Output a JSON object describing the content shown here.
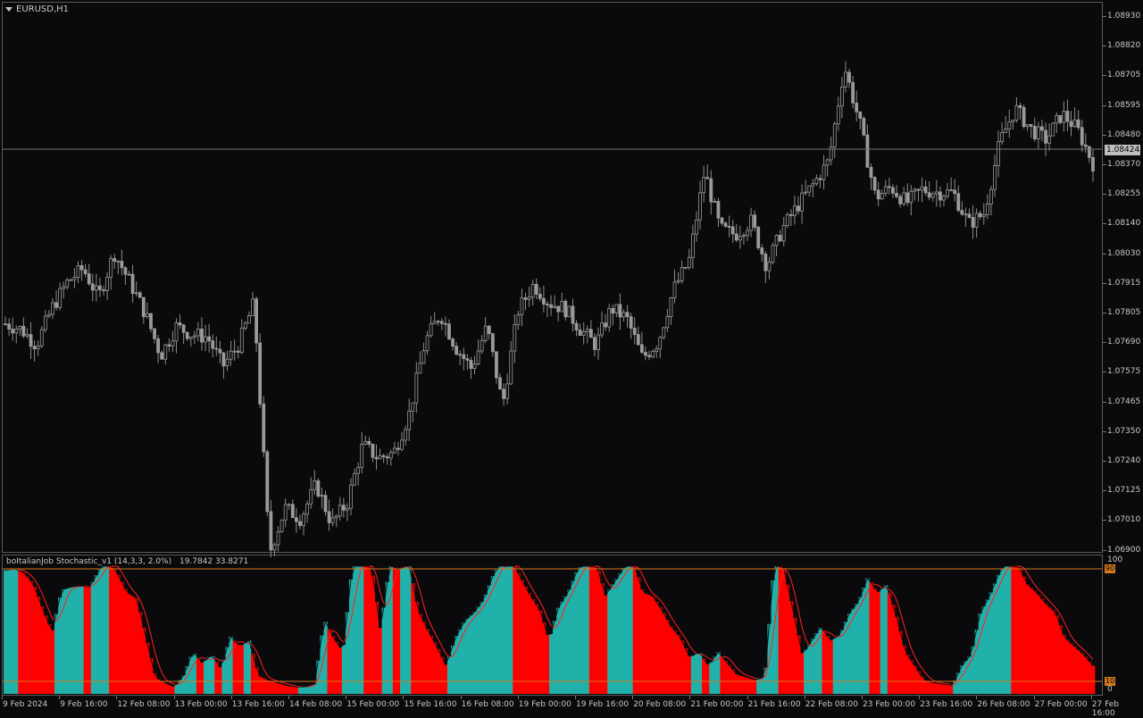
{
  "chart_window": {
    "symbol_label": "EURUSD,H1",
    "current_price": "1.08424",
    "colors": {
      "background": "#0a0a0d",
      "candle": "#9a9a9a",
      "price_line": "#7a7a7a"
    }
  },
  "indicator": {
    "label": "boItalianJob Stochastic_v1 (14,3,3, 2.0%)",
    "values": "19.7842 33.8271",
    "colors": {
      "up_fill": "#20b2aa",
      "down_fill": "#ff0000",
      "main_line": "#ff2020",
      "signal_line": "#000000",
      "level_line": "#d4781e"
    },
    "levels": {
      "top": "100",
      "high": "90",
      "low": "10",
      "bottom": "0"
    }
  },
  "price_axis": [
    "1.08930",
    "1.08820",
    "1.08705",
    "1.08595",
    "1.08480",
    "1.08370",
    "1.08255",
    "1.08140",
    "1.08030",
    "1.07915",
    "1.07805",
    "1.07690",
    "1.07575",
    "1.07465",
    "1.07350",
    "1.07240",
    "1.07125",
    "1.07010",
    "1.06900"
  ],
  "time_axis": [
    "9 Feb 2024",
    "9 Feb 16:00",
    "12 Feb 08:00",
    "13 Feb 00:00",
    "13 Feb 16:00",
    "14 Feb 08:00",
    "15 Feb 00:00",
    "15 Feb 16:00",
    "16 Feb 08:00",
    "19 Feb 00:00",
    "19 Feb 16:00",
    "20 Feb 08:00",
    "21 Feb 00:00",
    "21 Feb 16:00",
    "22 Feb 08:00",
    "23 Feb 00:00",
    "23 Feb 16:00",
    "26 Feb 08:00",
    "27 Feb 00:00",
    "27 Feb 16:00"
  ],
  "chart_data": [
    {
      "type": "candlestick",
      "title": "EURUSD,H1",
      "ylim": [
        1.069,
        1.0893
      ],
      "close_path": [
        1.0776,
        1.0774,
        1.0768,
        1.0782,
        1.0792,
        1.0797,
        1.0786,
        1.0803,
        1.0792,
        1.078,
        1.0764,
        1.0775,
        1.0772,
        1.0771,
        1.076,
        1.0768,
        1.0784,
        1.0689,
        1.0706,
        1.0702,
        1.0715,
        1.07,
        1.0708,
        1.073,
        1.0725,
        1.0727,
        1.0742,
        1.0769,
        1.078,
        1.0767,
        1.0759,
        1.0775,
        1.0745,
        1.0781,
        1.0791,
        1.0784,
        1.0782,
        1.0774,
        1.0768,
        1.0782,
        1.0778,
        1.0763,
        1.0769,
        1.0789,
        1.08,
        1.0834,
        1.0812,
        1.081,
        1.0815,
        1.0798,
        1.0812,
        1.0821,
        1.0829,
        1.0838,
        1.0874,
        1.0852,
        1.0824,
        1.0828,
        1.0822,
        1.0827,
        1.0826,
        1.0826,
        1.0814,
        1.0818,
        1.0845,
        1.0858,
        1.085,
        1.0846,
        1.0856,
        1.085,
        1.0837
      ]
    },
    {
      "type": "area",
      "title": "boItalianJob Stochastic_v1 (14,3,3, 2.0%)",
      "ylim": [
        0,
        100
      ],
      "levels": [
        10,
        90
      ],
      "main": [
        88,
        89,
        86,
        78,
        60,
        44,
        74,
        76,
        77,
        76,
        88,
        96,
        85,
        72,
        68,
        40,
        12,
        8,
        5,
        13,
        30,
        22,
        28,
        18,
        41,
        34,
        38,
        13,
        10,
        8,
        6,
        5,
        5,
        7,
        53,
        40,
        30,
        90,
        95,
        93,
        45,
        92,
        88,
        94,
        60,
        46,
        34,
        20,
        40,
        52,
        58,
        67,
        84,
        95,
        95,
        82,
        70,
        60,
        38,
        62,
        72,
        88,
        95,
        93,
        70,
        80,
        90,
        94,
        72,
        70,
        60,
        48,
        40,
        26,
        30,
        20,
        30,
        22,
        14,
        12,
        10,
        12,
        92,
        90,
        60,
        28,
        38,
        48,
        38,
        42,
        57,
        66,
        83,
        72,
        78,
        56,
        30,
        20,
        10,
        8,
        7,
        6,
        20,
        28,
        58,
        70,
        86,
        96,
        92,
        78,
        72,
        64,
        58,
        40,
        34,
        28,
        20
      ]
    }
  ]
}
